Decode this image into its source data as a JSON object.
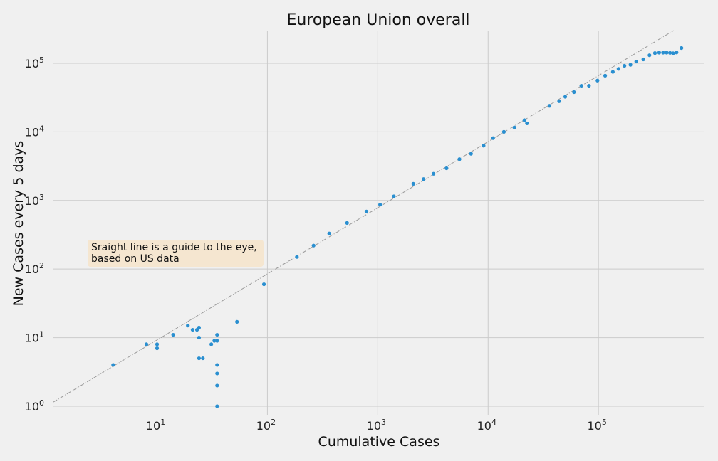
{
  "chart_data": {
    "type": "scatter",
    "title": "European Union overall",
    "xlabel": "Cumulative Cases",
    "ylabel": "New Cases every 5 days",
    "xscale": "log",
    "yscale": "log",
    "xlim": [
      1.15,
      900000
    ],
    "ylim": [
      0.75,
      300000
    ],
    "x_ticks": [
      10,
      100,
      1000,
      10000,
      100000
    ],
    "y_ticks": [
      1,
      10,
      100,
      1000,
      10000,
      100000
    ],
    "grid": true,
    "colors": {
      "points": "#2a8fd0",
      "guide_line": "#9a9a9a",
      "background": "#f0f0f0",
      "grid": "#cbcbcb",
      "annotation_box": "#f5e6d0"
    },
    "guide_line": {
      "style": "dash-dot",
      "points": [
        [
          1.15,
          1.15
        ],
        [
          480000,
          300000
        ]
      ]
    },
    "annotation": {
      "lines": [
        "Sraight line is a guide to the eye,",
        "based on US data"
      ]
    },
    "points": [
      [
        4,
        4
      ],
      [
        8,
        8
      ],
      [
        10,
        8
      ],
      [
        10,
        7
      ],
      [
        14,
        11
      ],
      [
        19,
        15
      ],
      [
        21,
        13
      ],
      [
        23,
        13
      ],
      [
        24,
        14
      ],
      [
        24,
        10
      ],
      [
        24,
        5
      ],
      [
        26,
        5
      ],
      [
        31,
        8
      ],
      [
        33,
        9
      ],
      [
        35,
        9
      ],
      [
        35,
        11
      ],
      [
        35,
        4
      ],
      [
        35,
        3
      ],
      [
        35,
        2
      ],
      [
        35,
        1
      ],
      [
        53,
        17
      ],
      [
        93,
        60
      ],
      [
        185,
        150
      ],
      [
        262,
        220
      ],
      [
        363,
        330
      ],
      [
        527,
        470
      ],
      [
        790,
        690
      ],
      [
        1050,
        870
      ],
      [
        1400,
        1150
      ],
      [
        2100,
        1750
      ],
      [
        2600,
        2050
      ],
      [
        3200,
        2450
      ],
      [
        4200,
        2950
      ],
      [
        5500,
        4000
      ],
      [
        7000,
        4800
      ],
      [
        9100,
        6300
      ],
      [
        11100,
        8100
      ],
      [
        13900,
        10000
      ],
      [
        17300,
        11600
      ],
      [
        21300,
        14800
      ],
      [
        22500,
        13300
      ],
      [
        36000,
        24000
      ],
      [
        44000,
        28000
      ],
      [
        50000,
        32500
      ],
      [
        60000,
        38000
      ],
      [
        70000,
        47000
      ],
      [
        82000,
        47000
      ],
      [
        98000,
        56000
      ],
      [
        115000,
        66000
      ],
      [
        135000,
        75000
      ],
      [
        152000,
        83000
      ],
      [
        172000,
        92000
      ],
      [
        195000,
        95000
      ],
      [
        220000,
        106000
      ],
      [
        255000,
        114000
      ],
      [
        290000,
        131000
      ],
      [
        325000,
        141000
      ],
      [
        355000,
        143000
      ],
      [
        385000,
        143000
      ],
      [
        415000,
        143000
      ],
      [
        445000,
        142000
      ],
      [
        475000,
        140000
      ],
      [
        510000,
        144000
      ],
      [
        565000,
        167000
      ]
    ]
  }
}
